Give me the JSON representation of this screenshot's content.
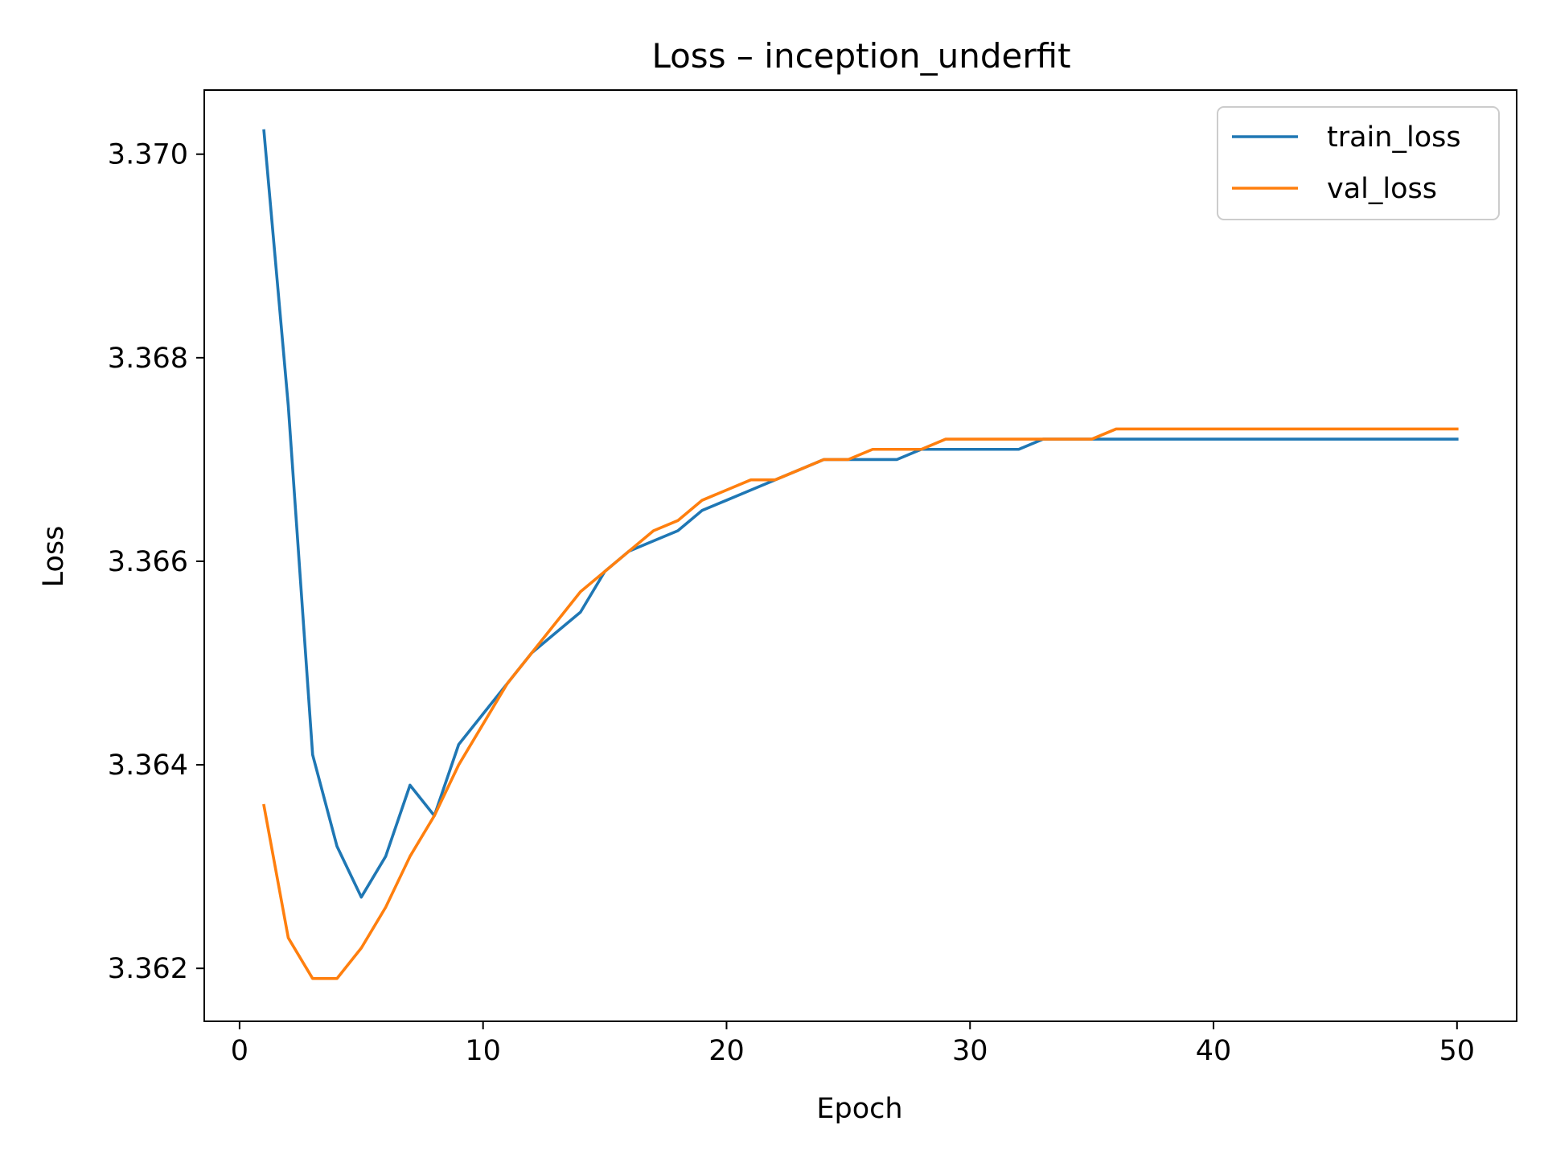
{
  "chart_data": {
    "type": "line",
    "title": "Loss – inception_underfit",
    "xlabel": "Epoch",
    "ylabel": "Loss",
    "xlim": [
      -1.45,
      52.45
    ],
    "ylim": [
      3.36148,
      3.37063
    ],
    "x_ticks": [
      0,
      10,
      20,
      30,
      40,
      50
    ],
    "x_tick_labels": [
      "0",
      "10",
      "20",
      "30",
      "40",
      "50"
    ],
    "y_ticks": [
      3.362,
      3.364,
      3.366,
      3.368,
      3.37
    ],
    "y_tick_labels": [
      "3.362",
      "3.364",
      "3.366",
      "3.368",
      "3.370"
    ],
    "grid": false,
    "legend_position": "top-right",
    "x": [
      1,
      2,
      3,
      4,
      5,
      6,
      7,
      8,
      9,
      10,
      11,
      12,
      13,
      14,
      15,
      16,
      17,
      18,
      19,
      20,
      21,
      22,
      23,
      24,
      25,
      26,
      27,
      28,
      29,
      30,
      31,
      32,
      33,
      34,
      35,
      36,
      37,
      38,
      39,
      40,
      41,
      42,
      43,
      44,
      45,
      46,
      47,
      48,
      49,
      50
    ],
    "series": [
      {
        "name": "train_loss",
        "color": "#1f77b4",
        "values": [
          3.37023,
          3.36753,
          3.3641,
          3.3632,
          3.3627,
          3.3631,
          3.3638,
          3.3635,
          3.3642,
          3.3645,
          3.3648,
          3.3651,
          3.3653,
          3.3655,
          3.3659,
          3.3661,
          3.3662,
          3.3663,
          3.3665,
          3.3666,
          3.3667,
          3.3668,
          3.3669,
          3.367,
          3.367,
          3.367,
          3.367,
          3.3671,
          3.3671,
          3.3671,
          3.3671,
          3.3671,
          3.3672,
          3.3672,
          3.3672,
          3.3672,
          3.3672,
          3.3672,
          3.3672,
          3.3672,
          3.3672,
          3.3672,
          3.3672,
          3.3672,
          3.3672,
          3.3672,
          3.3672,
          3.3672,
          3.3672,
          3.3672
        ]
      },
      {
        "name": "val_loss",
        "color": "#ff7f0e",
        "values": [
          3.3636,
          3.3623,
          3.3619,
          3.3619,
          3.3622,
          3.3626,
          3.3631,
          3.3635,
          3.364,
          3.3644,
          3.3648,
          3.3651,
          3.3654,
          3.3657,
          3.3659,
          3.3661,
          3.3663,
          3.3664,
          3.3666,
          3.3667,
          3.3668,
          3.3668,
          3.3669,
          3.367,
          3.367,
          3.3671,
          3.3671,
          3.3671,
          3.3672,
          3.3672,
          3.3672,
          3.3672,
          3.3672,
          3.3672,
          3.3672,
          3.3673,
          3.3673,
          3.3673,
          3.3673,
          3.3673,
          3.3673,
          3.3673,
          3.3673,
          3.3673,
          3.3673,
          3.3673,
          3.3673,
          3.3673,
          3.3673,
          3.3673
        ]
      }
    ]
  }
}
